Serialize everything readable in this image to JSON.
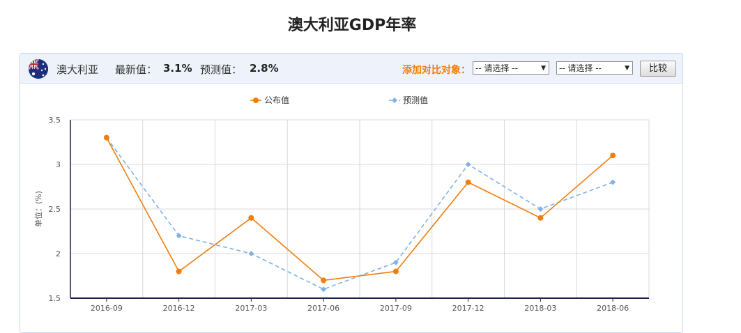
{
  "title": "澳大利亚GDP年率",
  "header": {
    "country": "澳大利亚",
    "latest_label": "最新值：",
    "latest_value": "3.1%",
    "forecast_label": "预测值：",
    "forecast_value": "2.8%",
    "compare_label": "添加对比对象：",
    "select1": "-- 请选择 --",
    "select2": "-- 请选择 --",
    "compare_button": "比较"
  },
  "colors": {
    "actual": "#f07d0d",
    "forecast": "#7fb2e5",
    "axis": "#1a1f4b",
    "grid": "#d9d9d9"
  },
  "icons": {
    "flag": "australia-flag-icon"
  },
  "chart_data": {
    "type": "line",
    "categories": [
      "2016-09",
      "2016-12",
      "2017-03",
      "2017-06",
      "2017-09",
      "2017-12",
      "2018-03",
      "2018-06"
    ],
    "series": [
      {
        "name": "公布值",
        "values": [
          3.3,
          1.8,
          2.4,
          1.7,
          1.8,
          2.8,
          2.4,
          3.1
        ],
        "style": "solid-circle"
      },
      {
        "name": "预测值",
        "values": [
          3.3,
          2.2,
          2.0,
          1.6,
          1.9,
          3.0,
          2.5,
          2.8
        ],
        "style": "dashed-diamond"
      }
    ],
    "ylabel": "单位：(%)",
    "ylim": [
      1.5,
      3.5
    ],
    "yticks": [
      "1.5",
      "2",
      "2.5",
      "3",
      "3.5"
    ],
    "grid": true,
    "legend_position": "top-center"
  }
}
